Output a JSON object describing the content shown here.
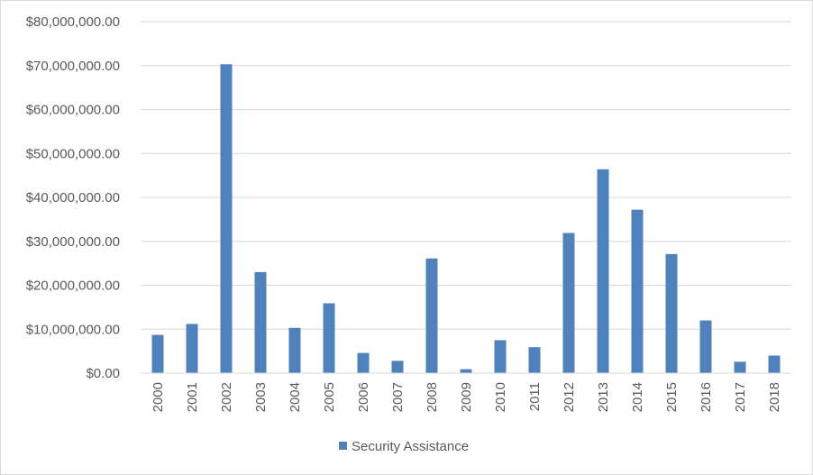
{
  "chart_data": {
    "type": "bar",
    "title": "",
    "xlabel": "",
    "ylabel": "",
    "categories": [
      "2000",
      "2001",
      "2002",
      "2003",
      "2004",
      "2005",
      "2006",
      "2007",
      "2008",
      "2009",
      "2010",
      "2011",
      "2012",
      "2013",
      "2014",
      "2015",
      "2016",
      "2017",
      "2018"
    ],
    "series": [
      {
        "name": "Security Assistance",
        "color": "#4f81bd",
        "values": [
          8700000,
          11200000,
          70300000,
          23000000,
          10300000,
          15900000,
          4600000,
          2800000,
          26100000,
          900000,
          7500000,
          5900000,
          31900000,
          46400000,
          37200000,
          27100000,
          12000000,
          2600000,
          4000000
        ]
      }
    ],
    "ylim": [
      0,
      80000000
    ],
    "y_ticks": [
      0,
      10000000,
      20000000,
      30000000,
      40000000,
      50000000,
      60000000,
      70000000,
      80000000
    ],
    "y_tick_labels": [
      "$0.00",
      "$10,000,000.00",
      "$20,000,000.00",
      "$30,000,000.00",
      "$40,000,000.00",
      "$50,000,000.00",
      "$60,000,000.00",
      "$70,000,000.00",
      "$80,000,000.00"
    ],
    "grid": true,
    "legend_position": "bottom",
    "gridline_color": "#d9d9d9"
  }
}
